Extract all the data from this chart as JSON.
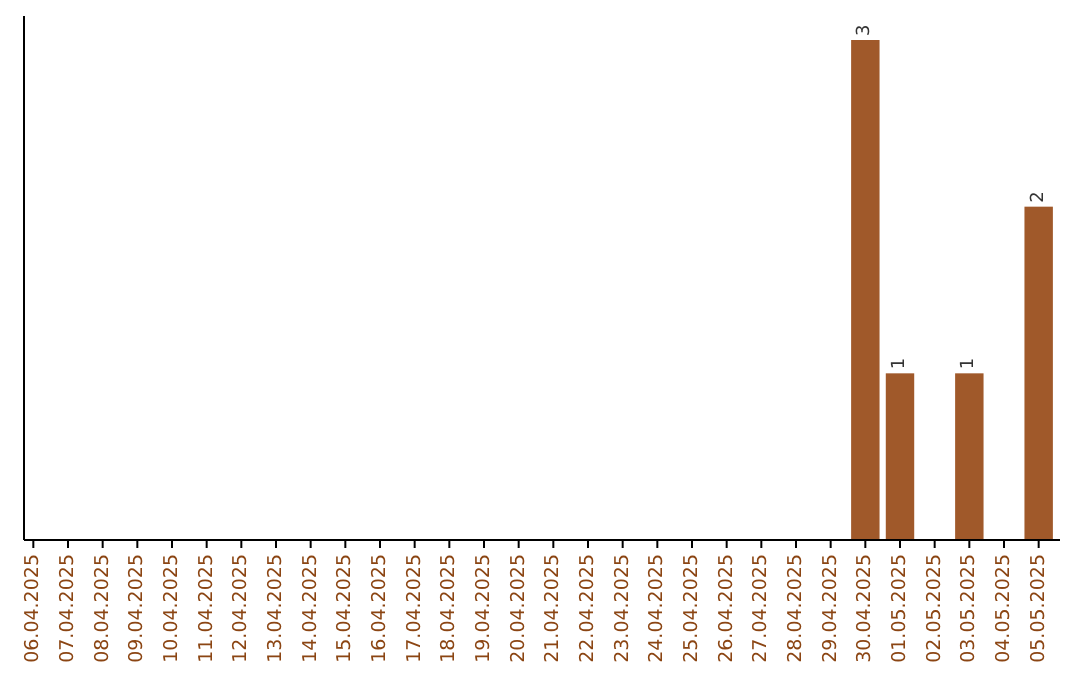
{
  "chart_data": {
    "type": "bar",
    "categories": [
      "06.04.2025",
      "07.04.2025",
      "08.04.2025",
      "09.04.2025",
      "10.04.2025",
      "11.04.2025",
      "12.04.2025",
      "13.04.2025",
      "14.04.2025",
      "15.04.2025",
      "16.04.2025",
      "17.04.2025",
      "18.04.2025",
      "19.04.2025",
      "20.04.2025",
      "21.04.2025",
      "22.04.2025",
      "23.04.2025",
      "24.04.2025",
      "25.04.2025",
      "26.04.2025",
      "27.04.2025",
      "28.04.2025",
      "29.04.2025",
      "30.04.2025",
      "01.05.2025",
      "02.05.2025",
      "03.05.2025",
      "04.05.2025",
      "05.05.2025"
    ],
    "values": [
      null,
      null,
      null,
      null,
      null,
      null,
      null,
      null,
      null,
      null,
      null,
      null,
      null,
      null,
      null,
      null,
      null,
      null,
      null,
      null,
      null,
      null,
      null,
      null,
      3,
      1,
      null,
      1,
      null,
      2
    ],
    "color": "#a0592a",
    "data_labels": true
  }
}
